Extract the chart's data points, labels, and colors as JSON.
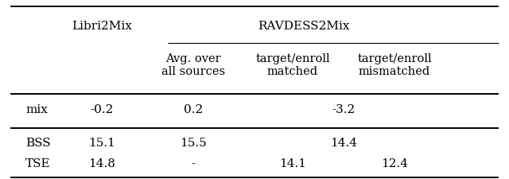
{
  "col2_header": "Libri2Mix",
  "ravdess_header": "RAVDESS2Mix",
  "subheaders": [
    "Avg. over\nall sources",
    "target/enroll\nmatched",
    "target/enroll\nmismatched"
  ],
  "rows": [
    {
      "label": "mix",
      "libri": "-0.2",
      "avg": "0.2",
      "matched": "-3.2",
      "matched_span": true,
      "mismatched": ""
    },
    {
      "label": "BSS",
      "libri": "15.1",
      "avg": "15.5",
      "matched": "14.4",
      "matched_span": true,
      "mismatched": ""
    },
    {
      "label": "TSE",
      "libri": "14.8",
      "avg": "-",
      "matched": "14.1",
      "matched_span": false,
      "mismatched": "12.4"
    }
  ],
  "c0": 0.05,
  "c1": 0.2,
  "c2": 0.38,
  "c3": 0.575,
  "c4": 0.775,
  "figwidth": 6.4,
  "figheight": 2.25,
  "dpi": 100,
  "fontsize": 11,
  "lw_thick": 1.4,
  "lw_thin": 0.8
}
